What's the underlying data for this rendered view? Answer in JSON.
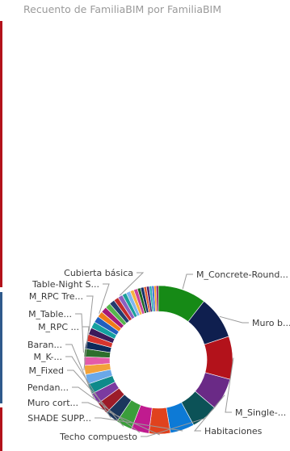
{
  "chart_data": {
    "type": "pie",
    "variant": "donut",
    "title": "Recuento de FamiliaBIM por FamiliaBIM",
    "series": [
      {
        "values": [
          9,
          8,
          8,
          6,
          5,
          4.5,
          4,
          3.3,
          3,
          2.5,
          2.3,
          2.1,
          1.9,
          1.8,
          1.7,
          1.6,
          1.5,
          1.4,
          1.3,
          1.3,
          1.2,
          1.2,
          1.1,
          1.1,
          1.0,
          1.0,
          0.9,
          0.9,
          0.8,
          0.8,
          0.7,
          0.7,
          0.6,
          0.6,
          0.5,
          0.5,
          0.5,
          0.4,
          0.4,
          0.4
        ]
      }
    ],
    "colors": [
      "#168a16",
      "#0f1f4f",
      "#b3121b",
      "#6a2a86",
      "#0c5257",
      "#0d7ad6",
      "#e0421e",
      "#c01b8f",
      "#3b9e3b",
      "#1b365d",
      "#9c1c28",
      "#7b3aa0",
      "#0e8a8a",
      "#6aa8e8",
      "#f2a23a",
      "#e35ba9",
      "#2d6e2d",
      "#0b2a5a",
      "#d4352f",
      "#3d1a5a",
      "#13a0a0",
      "#1f5fbf",
      "#f07b18",
      "#a41877",
      "#56b44d",
      "#233b6e",
      "#c22b2b",
      "#8c5fc0",
      "#1aa09a",
      "#7fb6f0",
      "#f5b540",
      "#cc4499",
      "#206620",
      "#14306a",
      "#e05a30",
      "#4a2070",
      "#30b0b0",
      "#3060d0",
      "#ff9a20",
      "#881060"
    ],
    "labeled_slices": [
      {
        "index": 0,
        "label": "M_Concrete-Round..."
      },
      {
        "index": 1,
        "label": "Muro b..."
      },
      {
        "index": 2,
        "label": "M_Single-..."
      },
      {
        "index": 3,
        "label": "Habitaciones"
      },
      {
        "index": 4,
        "label": "Techo compuesto"
      },
      {
        "index": 5,
        "label": "SHADE SUPP..."
      },
      {
        "index": 6,
        "label": "Muro cort..."
      },
      {
        "index": 7,
        "label": "Pendan..."
      },
      {
        "index": 8,
        "label": "M_Fixed"
      },
      {
        "index": 9,
        "label": "M_K-..."
      },
      {
        "index": 11,
        "label": "Baran..."
      },
      {
        "index": 14,
        "label": "M_RPC ..."
      },
      {
        "index": 16,
        "label": "M_Table..."
      },
      {
        "index": 19,
        "label": "M_RPC Tre..."
      },
      {
        "index": 22,
        "label": "Table-Night S..."
      },
      {
        "index": 27,
        "label": "Cubierta básica"
      }
    ],
    "legend": "none"
  }
}
